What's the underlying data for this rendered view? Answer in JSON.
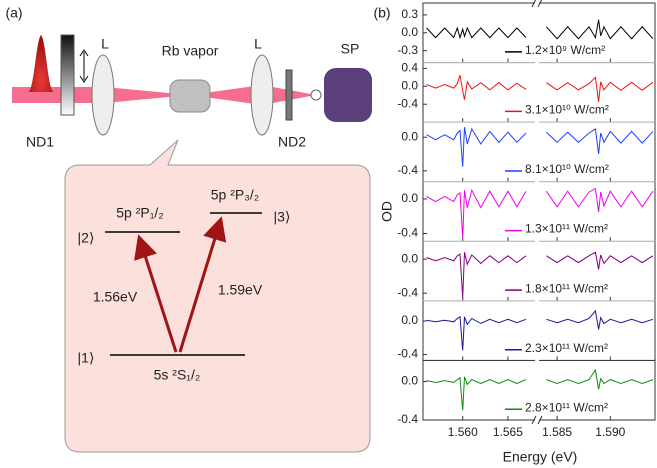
{
  "panel_a": {
    "label": "(a)",
    "lens_left": "L",
    "cell": "Rb vapor",
    "lens_right": "L",
    "spectrometer": "SP",
    "filter_1": "ND1",
    "filter_2": "ND2",
    "level_2_term": "5p ²P₁/₂",
    "level_3_term": "5p ²P₃/₂",
    "level_1_term": "5s ²S₁/₂",
    "level_1": "|1⟩",
    "level_2": "|2⟩",
    "level_3": "|3⟩",
    "transition_12": "1.56eV",
    "transition_13": "1.59eV"
  },
  "panel_b_label": "(b)",
  "chart_data": [
    {
      "type": "line",
      "x": [
        1.556,
        1.557,
        1.558,
        1.559,
        1.5594,
        1.5597,
        1.56,
        1.5602,
        1.5605,
        1.561,
        1.562,
        1.563,
        1.564,
        1.565,
        1.566,
        1.567,
        1.575,
        1.584,
        1.585,
        1.586,
        1.587,
        1.588,
        1.5886,
        1.5889,
        1.5891,
        1.5894,
        1.59,
        1.591,
        1.592,
        1.593,
        1.594
      ],
      "xlim": [
        1.5556,
        1.5942
      ],
      "xbreak": [
        1.568,
        1.5833
      ],
      "ylim": [
        -0.5,
        0.5
      ],
      "yticks": [
        0.3,
        {
          "value": 0,
          "label": "0.0"
        },
        -0.3
      ],
      "series": [
        {
          "name": "1.2×10⁹ W/cm²",
          "color": "#000000",
          "values": [
            0.08,
            -0.08,
            0.08,
            -0.08,
            0.08,
            -0.08,
            0.06,
            -0.06,
            0.08,
            -0.08,
            0.08,
            -0.08,
            0.08,
            -0.08,
            0.08,
            -0.08,
            null,
            0.1,
            -0.1,
            0.1,
            -0.1,
            0.1,
            -0.08,
            0.22,
            -0.05,
            0.1,
            -0.1,
            0.1,
            -0.1,
            0.1,
            -0.1
          ]
        }
      ]
    },
    {
      "type": "line",
      "x": [
        1.556,
        1.557,
        1.558,
        1.559,
        1.5594,
        1.5597,
        1.56,
        1.5602,
        1.5605,
        1.561,
        1.562,
        1.563,
        1.564,
        1.565,
        1.566,
        1.567,
        1.575,
        1.584,
        1.585,
        1.586,
        1.587,
        1.588,
        1.5886,
        1.5889,
        1.5891,
        1.5894,
        1.59,
        1.591,
        1.592,
        1.593,
        1.594
      ],
      "xlim": [
        1.5556,
        1.5942
      ],
      "xbreak": [
        1.568,
        1.5833
      ],
      "ylim": [
        -0.8,
        0.53
      ],
      "yticks": [
        0.4,
        {
          "value": 0,
          "label": "0.0"
        },
        -0.4
      ],
      "series": [
        {
          "name": "3.1×10¹⁰ W/cm²",
          "color": "#ee1111",
          "values": [
            0.04,
            -0.04,
            0.04,
            -0.04,
            0.06,
            0.25,
            -0.1,
            -0.3,
            0.1,
            -0.06,
            0.08,
            -0.08,
            0.08,
            -0.08,
            0.07,
            -0.07,
            null,
            0.08,
            -0.08,
            0.08,
            -0.08,
            0.06,
            0.2,
            -0.35,
            0.1,
            -0.08,
            0.09,
            -0.09,
            0.09,
            -0.09,
            0.09
          ]
        }
      ]
    },
    {
      "type": "line",
      "x": [
        1.556,
        1.557,
        1.558,
        1.559,
        1.5594,
        1.5597,
        1.56,
        1.5602,
        1.5605,
        1.561,
        1.562,
        1.563,
        1.564,
        1.565,
        1.566,
        1.567,
        1.575,
        1.584,
        1.585,
        1.586,
        1.587,
        1.588,
        1.5886,
        1.5889,
        1.5891,
        1.5894,
        1.59,
        1.591,
        1.592,
        1.593,
        1.594
      ],
      "xlim": [
        1.5556,
        1.5942
      ],
      "xbreak": [
        1.568,
        1.5833
      ],
      "ylim": [
        -0.53,
        0.18
      ],
      "yticks": [
        {
          "value": 0,
          "label": "0.0"
        },
        -0.4
      ],
      "series": [
        {
          "name": "8.1×10¹⁰ W/cm²",
          "color": "#1f3fff",
          "values": [
            0.03,
            -0.03,
            0.03,
            -0.03,
            0.05,
            0.08,
            -0.35,
            0.12,
            -0.08,
            0.1,
            -0.08,
            0.07,
            -0.06,
            0.06,
            -0.06,
            0.05,
            null,
            0.06,
            -0.06,
            0.06,
            -0.06,
            0.05,
            0.1,
            -0.2,
            0.05,
            -0.06,
            0.07,
            -0.07,
            0.07,
            -0.07,
            0.07
          ]
        }
      ]
    },
    {
      "type": "line",
      "x": [
        1.556,
        1.557,
        1.558,
        1.559,
        1.5594,
        1.5597,
        1.56,
        1.5602,
        1.5605,
        1.561,
        1.562,
        1.563,
        1.564,
        1.565,
        1.566,
        1.567,
        1.575,
        1.584,
        1.585,
        1.586,
        1.587,
        1.588,
        1.5886,
        1.5889,
        1.5891,
        1.5894,
        1.59,
        1.591,
        1.592,
        1.593,
        1.594
      ],
      "xlim": [
        1.5556,
        1.5942
      ],
      "xbreak": [
        1.568,
        1.5833
      ],
      "ylim": [
        -0.49,
        0.2
      ],
      "yticks": [
        {
          "value": 0,
          "label": "0.0"
        },
        -0.4
      ],
      "ylabel": "OD",
      "series": [
        {
          "name": "1.3×10¹¹ W/cm²",
          "color": "#ee00ee",
          "values": [
            0.03,
            -0.03,
            0.03,
            -0.03,
            0.05,
            0.07,
            -0.45,
            0.1,
            -0.1,
            0.1,
            -0.1,
            0.09,
            -0.09,
            0.09,
            -0.09,
            0.09,
            null,
            0.09,
            -0.09,
            0.09,
            -0.09,
            0.08,
            0.12,
            -0.15,
            0.08,
            -0.08,
            0.09,
            -0.09,
            0.09,
            -0.09,
            0.09
          ]
        }
      ]
    },
    {
      "type": "line",
      "x": [
        1.556,
        1.557,
        1.558,
        1.559,
        1.5594,
        1.5597,
        1.56,
        1.5602,
        1.5605,
        1.561,
        1.562,
        1.563,
        1.564,
        1.565,
        1.566,
        1.567,
        1.575,
        1.584,
        1.585,
        1.586,
        1.587,
        1.588,
        1.5886,
        1.5889,
        1.5891,
        1.5894,
        1.59,
        1.591,
        1.592,
        1.593,
        1.594
      ],
      "xlim": [
        1.5556,
        1.5942
      ],
      "xbreak": [
        1.568,
        1.5833
      ],
      "ylim": [
        -0.49,
        0.21
      ],
      "yticks": [
        {
          "value": 0,
          "label": "0.0"
        },
        -0.4
      ],
      "series": [
        {
          "name": "1.8×10¹¹ W/cm²",
          "color": "#800080",
          "values": [
            0.02,
            -0.02,
            0.02,
            -0.02,
            0.04,
            0.06,
            -0.45,
            0.08,
            -0.06,
            0.05,
            -0.05,
            0.04,
            -0.04,
            0.04,
            -0.04,
            0.04,
            null,
            0.04,
            -0.04,
            0.04,
            -0.04,
            0.04,
            0.08,
            -0.12,
            0.05,
            -0.05,
            0.04,
            -0.04,
            0.04,
            -0.04,
            0.04
          ]
        }
      ]
    },
    {
      "type": "line",
      "x": [
        1.556,
        1.557,
        1.558,
        1.559,
        1.5594,
        1.5597,
        1.56,
        1.5602,
        1.5605,
        1.561,
        1.562,
        1.563,
        1.564,
        1.565,
        1.566,
        1.567,
        1.575,
        1.584,
        1.585,
        1.586,
        1.587,
        1.588,
        1.5886,
        1.5889,
        1.5891,
        1.5894,
        1.59,
        1.591,
        1.592,
        1.593,
        1.594
      ],
      "xlim": [
        1.5556,
        1.5942
      ],
      "xbreak": [
        1.568,
        1.5833
      ],
      "ylim": [
        -0.47,
        0.24
      ],
      "yticks": [
        {
          "value": 0,
          "label": "0.0"
        },
        -0.4
      ],
      "series": [
        {
          "name": "2.3×10¹¹ W/cm²",
          "color": "#1a1a9a",
          "values": [
            0.01,
            -0.01,
            0.01,
            -0.01,
            0.03,
            0.05,
            -0.35,
            0.05,
            -0.04,
            0.03,
            -0.03,
            0.02,
            -0.02,
            0.02,
            -0.02,
            0.02,
            null,
            0.02,
            -0.02,
            0.02,
            -0.02,
            0.03,
            0.12,
            -0.1,
            0.04,
            -0.03,
            0.02,
            -0.02,
            0.02,
            -0.02,
            0.02
          ]
        }
      ]
    },
    {
      "type": "line",
      "x": [
        1.556,
        1.557,
        1.558,
        1.559,
        1.5594,
        1.5597,
        1.56,
        1.5602,
        1.5605,
        1.561,
        1.562,
        1.563,
        1.564,
        1.565,
        1.566,
        1.567,
        1.575,
        1.584,
        1.585,
        1.586,
        1.587,
        1.588,
        1.5886,
        1.5889,
        1.5891,
        1.5894,
        1.59,
        1.591,
        1.592,
        1.593,
        1.594
      ],
      "xlim": [
        1.5556,
        1.5942
      ],
      "xbreak": [
        1.568,
        1.5833
      ],
      "ylim": [
        -0.4,
        0.22
      ],
      "yticks": [
        {
          "value": 0,
          "label": "0.0"
        },
        -0.4
      ],
      "xticks": [
        {
          "value": 1.56,
          "label": "1.560"
        },
        {
          "value": 1.565,
          "label": "1.565"
        },
        {
          "value": 1.585,
          "label": "1.585"
        },
        {
          "value": 1.59,
          "label": "1.590"
        }
      ],
      "xlabel": "Energy (eV)",
      "series": [
        {
          "name": "2.8×10¹¹ W/cm²",
          "color": "#118811",
          "values": [
            0.01,
            -0.01,
            0.01,
            -0.01,
            0.02,
            0.04,
            -0.3,
            0.05,
            -0.03,
            0.02,
            -0.02,
            0.02,
            -0.02,
            0.02,
            -0.02,
            0.02,
            null,
            0.02,
            -0.02,
            0.02,
            -0.02,
            0.02,
            0.12,
            -0.08,
            0.03,
            -0.02,
            0.02,
            -0.02,
            0.02,
            -0.02,
            0.02
          ]
        }
      ]
    }
  ]
}
